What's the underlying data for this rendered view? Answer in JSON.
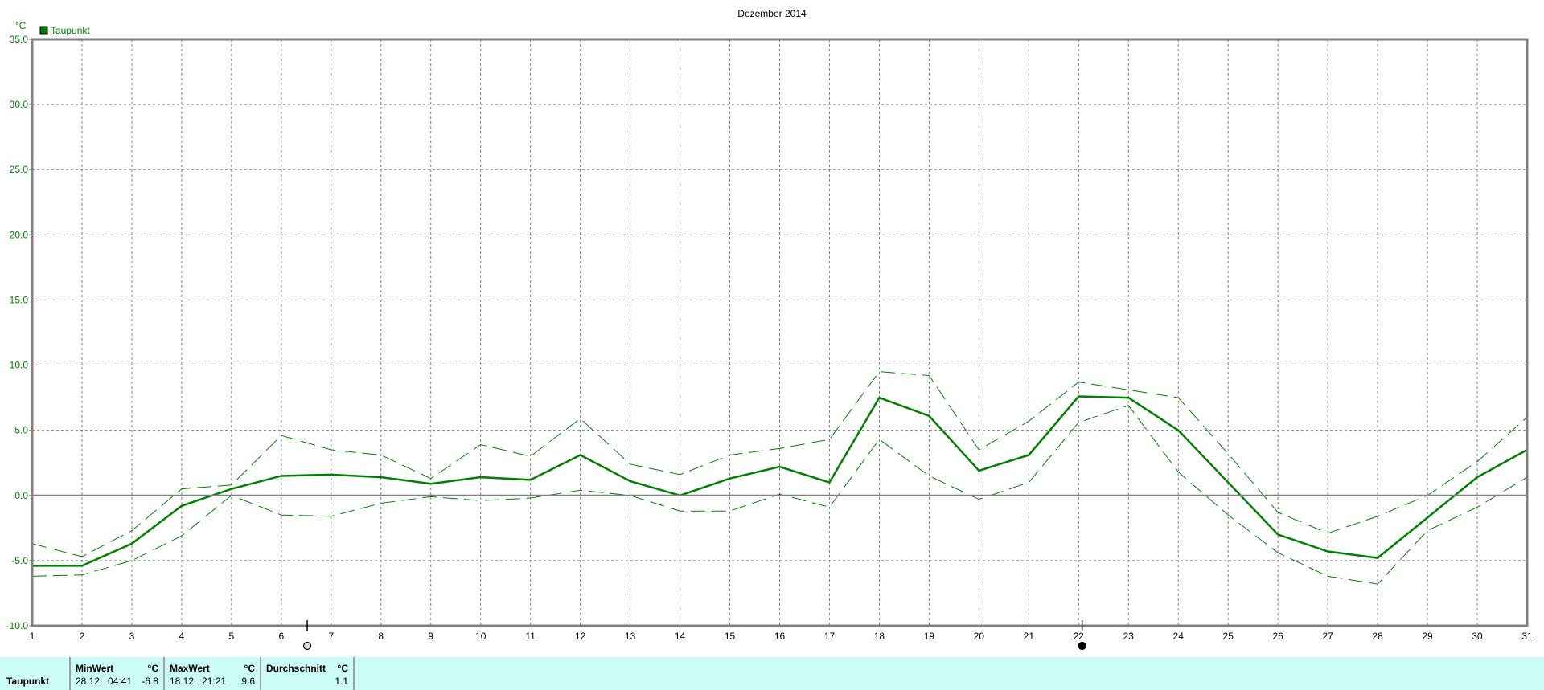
{
  "chart_data": {
    "type": "line",
    "title": "Dezember 2014",
    "ylabel": "°C",
    "ylim": [
      -10,
      35
    ],
    "yticks": [
      "35.0",
      "30.0",
      "25.0",
      "20.0",
      "15.0",
      "10.0",
      "5.0",
      "0.0",
      "-5.0",
      "-10.0"
    ],
    "x": [
      1,
      2,
      3,
      4,
      5,
      6,
      7,
      8,
      9,
      10,
      11,
      12,
      13,
      14,
      15,
      16,
      17,
      18,
      19,
      20,
      21,
      22,
      23,
      24,
      25,
      26,
      27,
      28,
      29,
      30,
      31
    ],
    "grid": true,
    "legend_position": "top-left",
    "series": [
      {
        "name": "Taupunkt",
        "style": "solid",
        "color": "#008000",
        "values": [
          -5.4,
          -5.4,
          -3.7,
          -0.8,
          0.5,
          1.5,
          1.6,
          1.4,
          0.9,
          1.4,
          1.2,
          3.1,
          1.1,
          0.0,
          1.3,
          2.2,
          1.0,
          7.5,
          6.1,
          1.9,
          3.1,
          7.6,
          7.5,
          5.0,
          1.0,
          -3.0,
          -4.3,
          -4.8,
          -1.7,
          1.4,
          3.5
        ]
      },
      {
        "style": "dashed",
        "color": "#008000",
        "values": [
          -3.7,
          -4.7,
          -2.7,
          0.5,
          0.8,
          4.6,
          3.5,
          3.1,
          1.3,
          3.9,
          3.0,
          5.9,
          2.4,
          1.6,
          3.1,
          3.6,
          4.3,
          9.5,
          9.2,
          3.5,
          5.7,
          8.7,
          8.1,
          7.5,
          3.2,
          -1.3,
          -2.9,
          -1.6,
          0.0,
          2.6,
          6.0
        ]
      },
      {
        "style": "dashed",
        "color": "#008000",
        "values": [
          -6.2,
          -6.1,
          -5.0,
          -3.1,
          0.0,
          -1.5,
          -1.6,
          -0.6,
          -0.1,
          -0.4,
          -0.2,
          0.4,
          0.0,
          -1.2,
          -1.2,
          0.1,
          -0.9,
          4.3,
          1.5,
          -0.3,
          1.0,
          5.6,
          6.9,
          1.8,
          -1.5,
          -4.4,
          -6.2,
          -6.8,
          -2.7,
          -0.9,
          1.4
        ]
      }
    ],
    "markers": [
      {
        "name": "full-moon-icon",
        "x": 6.52
      },
      {
        "name": "new-moon-icon",
        "x": 22.07
      }
    ]
  },
  "stats": {
    "row_label": "Taupunkt",
    "unit": "°C",
    "min": {
      "header": "MinWert",
      "time": "28.12.  04:41",
      "value": "-6.8"
    },
    "max": {
      "header": "MaxWert",
      "time": "18.12.  21:21",
      "value": "9.6"
    },
    "avg": {
      "header": "Durchschnitt",
      "value": "1.1"
    }
  },
  "colors": {
    "series": "#008000",
    "stats_bg": "#ccfcf8",
    "grid": "#808080"
  }
}
